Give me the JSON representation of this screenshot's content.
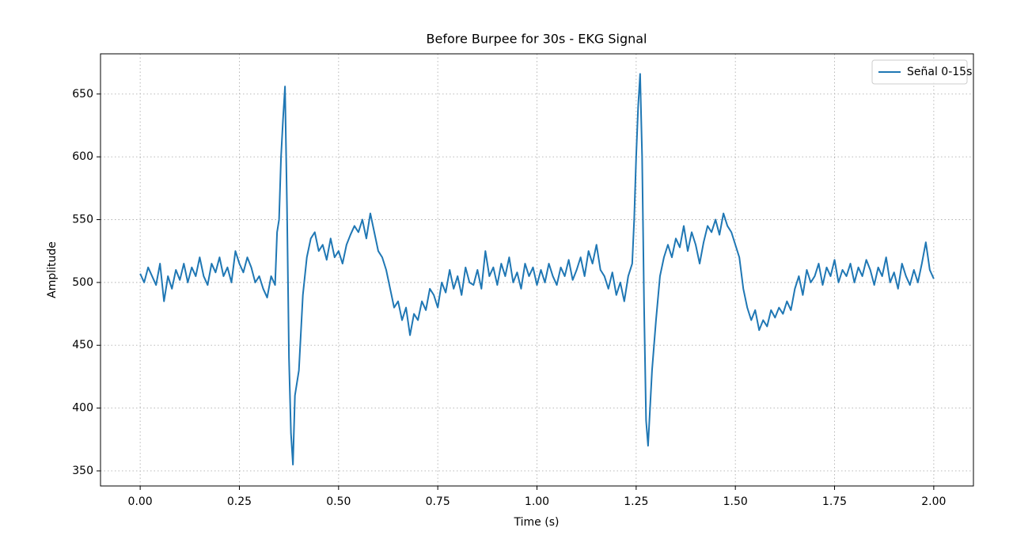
{
  "chart_data": {
    "type": "line",
    "title": "Before Burpee for 30s - EKG Signal",
    "xlabel": "Time (s)",
    "ylabel": "Amplitude",
    "x": [
      0.0,
      0.01,
      0.02,
      0.03,
      0.04,
      0.05,
      0.06,
      0.07,
      0.08,
      0.09,
      0.1,
      0.11,
      0.12,
      0.13,
      0.14,
      0.15,
      0.16,
      0.17,
      0.18,
      0.19,
      0.2,
      0.21,
      0.22,
      0.23,
      0.24,
      0.25,
      0.26,
      0.27,
      0.28,
      0.29,
      0.3,
      0.31,
      0.32,
      0.33,
      0.34,
      0.345,
      0.35,
      0.355,
      0.36,
      0.365,
      0.37,
      0.375,
      0.38,
      0.385,
      0.39,
      0.4,
      0.41,
      0.42,
      0.43,
      0.44,
      0.45,
      0.46,
      0.47,
      0.48,
      0.49,
      0.5,
      0.51,
      0.52,
      0.53,
      0.54,
      0.55,
      0.56,
      0.57,
      0.58,
      0.59,
      0.6,
      0.61,
      0.62,
      0.63,
      0.64,
      0.65,
      0.66,
      0.67,
      0.68,
      0.69,
      0.7,
      0.71,
      0.72,
      0.73,
      0.74,
      0.75,
      0.76,
      0.77,
      0.78,
      0.79,
      0.8,
      0.81,
      0.82,
      0.83,
      0.84,
      0.85,
      0.86,
      0.87,
      0.88,
      0.89,
      0.9,
      0.91,
      0.92,
      0.93,
      0.94,
      0.95,
      0.96,
      0.97,
      0.98,
      0.99,
      1.0,
      1.01,
      1.02,
      1.03,
      1.04,
      1.05,
      1.06,
      1.07,
      1.08,
      1.09,
      1.1,
      1.11,
      1.12,
      1.13,
      1.14,
      1.15,
      1.16,
      1.17,
      1.18,
      1.19,
      1.2,
      1.21,
      1.22,
      1.23,
      1.24,
      1.245,
      1.25,
      1.255,
      1.26,
      1.265,
      1.27,
      1.275,
      1.28,
      1.285,
      1.29,
      1.3,
      1.31,
      1.32,
      1.33,
      1.34,
      1.35,
      1.36,
      1.37,
      1.38,
      1.39,
      1.4,
      1.41,
      1.42,
      1.43,
      1.44,
      1.45,
      1.46,
      1.47,
      1.48,
      1.49,
      1.5,
      1.51,
      1.52,
      1.53,
      1.54,
      1.55,
      1.56,
      1.57,
      1.58,
      1.59,
      1.6,
      1.61,
      1.62,
      1.63,
      1.64,
      1.65,
      1.66,
      1.67,
      1.68,
      1.69,
      1.7,
      1.71,
      1.72,
      1.73,
      1.74,
      1.75,
      1.76,
      1.77,
      1.78,
      1.79,
      1.8,
      1.81,
      1.82,
      1.83,
      1.84,
      1.85,
      1.86,
      1.87,
      1.88,
      1.89,
      1.9,
      1.91,
      1.92,
      1.93,
      1.94,
      1.95,
      1.96,
      1.97,
      1.98,
      1.99,
      2.0
    ],
    "series": [
      {
        "name": "Señal 0-15s",
        "color": "#1f77b4",
        "values": [
          507,
          500,
          512,
          505,
          498,
          515,
          485,
          505,
          495,
          510,
          502,
          515,
          500,
          512,
          505,
          520,
          505,
          498,
          515,
          508,
          520,
          505,
          512,
          500,
          525,
          515,
          508,
          520,
          512,
          500,
          505,
          495,
          488,
          505,
          498,
          540,
          550,
          600,
          630,
          656,
          560,
          440,
          380,
          355,
          410,
          430,
          490,
          520,
          535,
          540,
          525,
          530,
          518,
          535,
          520,
          525,
          515,
          530,
          538,
          545,
          540,
          550,
          535,
          555,
          540,
          525,
          520,
          510,
          495,
          480,
          485,
          470,
          480,
          458,
          475,
          470,
          485,
          478,
          495,
          490,
          480,
          500,
          492,
          510,
          495,
          505,
          490,
          512,
          500,
          498,
          510,
          495,
          525,
          505,
          512,
          498,
          515,
          505,
          520,
          500,
          508,
          495,
          515,
          505,
          512,
          498,
          510,
          500,
          515,
          505,
          498,
          512,
          505,
          518,
          502,
          510,
          520,
          505,
          525,
          515,
          530,
          510,
          505,
          495,
          508,
          490,
          500,
          485,
          505,
          515,
          550,
          600,
          640,
          666,
          600,
          480,
          390,
          370,
          400,
          430,
          470,
          505,
          520,
          530,
          520,
          535,
          528,
          545,
          525,
          540,
          530,
          515,
          532,
          545,
          540,
          550,
          538,
          555,
          545,
          540,
          530,
          520,
          495,
          480,
          470,
          478,
          462,
          470,
          465,
          478,
          472,
          480,
          475,
          485,
          478,
          495,
          505,
          490,
          510,
          500,
          505,
          515,
          498,
          512,
          505,
          518,
          500,
          510,
          505,
          515,
          500,
          512,
          505,
          518,
          510,
          498,
          512,
          505,
          520,
          500,
          508,
          495,
          515,
          505,
          498,
          510,
          500,
          515,
          532,
          510,
          503
        ]
      }
    ],
    "xlim": [
      -0.1,
      2.1
    ],
    "ylim": [
      338,
      682
    ],
    "xticks": [
      {
        "value": 0,
        "label": "0.00"
      },
      {
        "value": 0.25,
        "label": "0.25"
      },
      {
        "value": 0.5,
        "label": "0.50"
      },
      {
        "value": 0.75,
        "label": "0.75"
      },
      {
        "value": 1,
        "label": "1.00"
      },
      {
        "value": 1.25,
        "label": "1.25"
      },
      {
        "value": 1.5,
        "label": "1.50"
      },
      {
        "value": 1.75,
        "label": "1.75"
      },
      {
        "value": 2,
        "label": "2.00"
      }
    ],
    "yticks": [
      350,
      400,
      450,
      500,
      550,
      600,
      650
    ],
    "grid": true,
    "legend": "upper right"
  }
}
